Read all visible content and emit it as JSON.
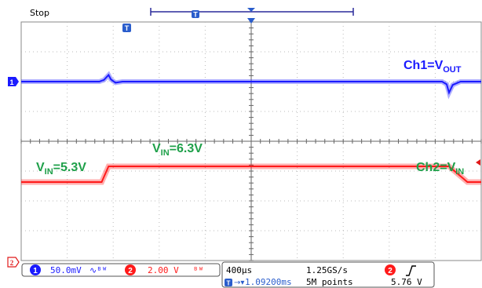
{
  "status": "Stop",
  "trigger_marker_label": "T",
  "channels": [
    {
      "id": "ch1",
      "marker": "1",
      "color": "#1a1aff"
    },
    {
      "id": "ch2",
      "marker": "2",
      "color": "#ff1a1a"
    }
  ],
  "annotations": {
    "ch1": {
      "main": "Ch1=V",
      "sub": "OUT"
    },
    "ch2": {
      "main": "Ch2=V",
      "sub": "IN"
    },
    "vin_low": {
      "main": "V",
      "sub": "IN",
      "rest": "=5.3V"
    },
    "vin_high": {
      "main": "V",
      "sub": "IN",
      "rest": "=6.3V"
    }
  },
  "readout": {
    "ch1_badge": "1",
    "ch1_scale": "50.0mV",
    "ch2_badge": "2",
    "ch2_scale": "2.00 V",
    "bw_icon": "bandwidth-limit-icon",
    "timebase": "400µs",
    "sample_rate": "1.25GS/s",
    "trigger_badge": "2",
    "trigger_slope_icon": "rising-edge-icon",
    "horizontal_position": "1.09200ms",
    "record_length": "5M points",
    "trigger_level": "5.76 V"
  },
  "chart_data": {
    "type": "line",
    "x_unit": "s",
    "x_range_divs": [
      -5,
      5
    ],
    "seconds_per_div": 0.0004,
    "grid": true,
    "series": [
      {
        "name": "Ch1=VOUT",
        "color": "#1a1aff",
        "points_divs": [
          [
            -5,
            0
          ],
          [
            -3.3,
            0
          ],
          [
            -3.2,
            0.08
          ],
          [
            -3.1,
            0.3
          ],
          [
            -3.05,
            0.1
          ],
          [
            -2.95,
            -0.05
          ],
          [
            -2.8,
            0
          ],
          [
            4.15,
            0
          ],
          [
            4.25,
            -0.12
          ],
          [
            4.3,
            -0.5
          ],
          [
            4.38,
            -0.15
          ],
          [
            4.55,
            0
          ],
          [
            5,
            0
          ]
        ]
      },
      {
        "name": "Ch2=VIN",
        "color": "#ff1a1a",
        "volts": {
          "low": 5.3,
          "high": 6.3
        },
        "points_divs": [
          [
            -5,
            5.3
          ],
          [
            -3.25,
            5.3
          ],
          [
            -3.1,
            6.3
          ],
          [
            4.3,
            6.3
          ],
          [
            4.7,
            5.3
          ],
          [
            5,
            5.3
          ]
        ]
      }
    ]
  }
}
